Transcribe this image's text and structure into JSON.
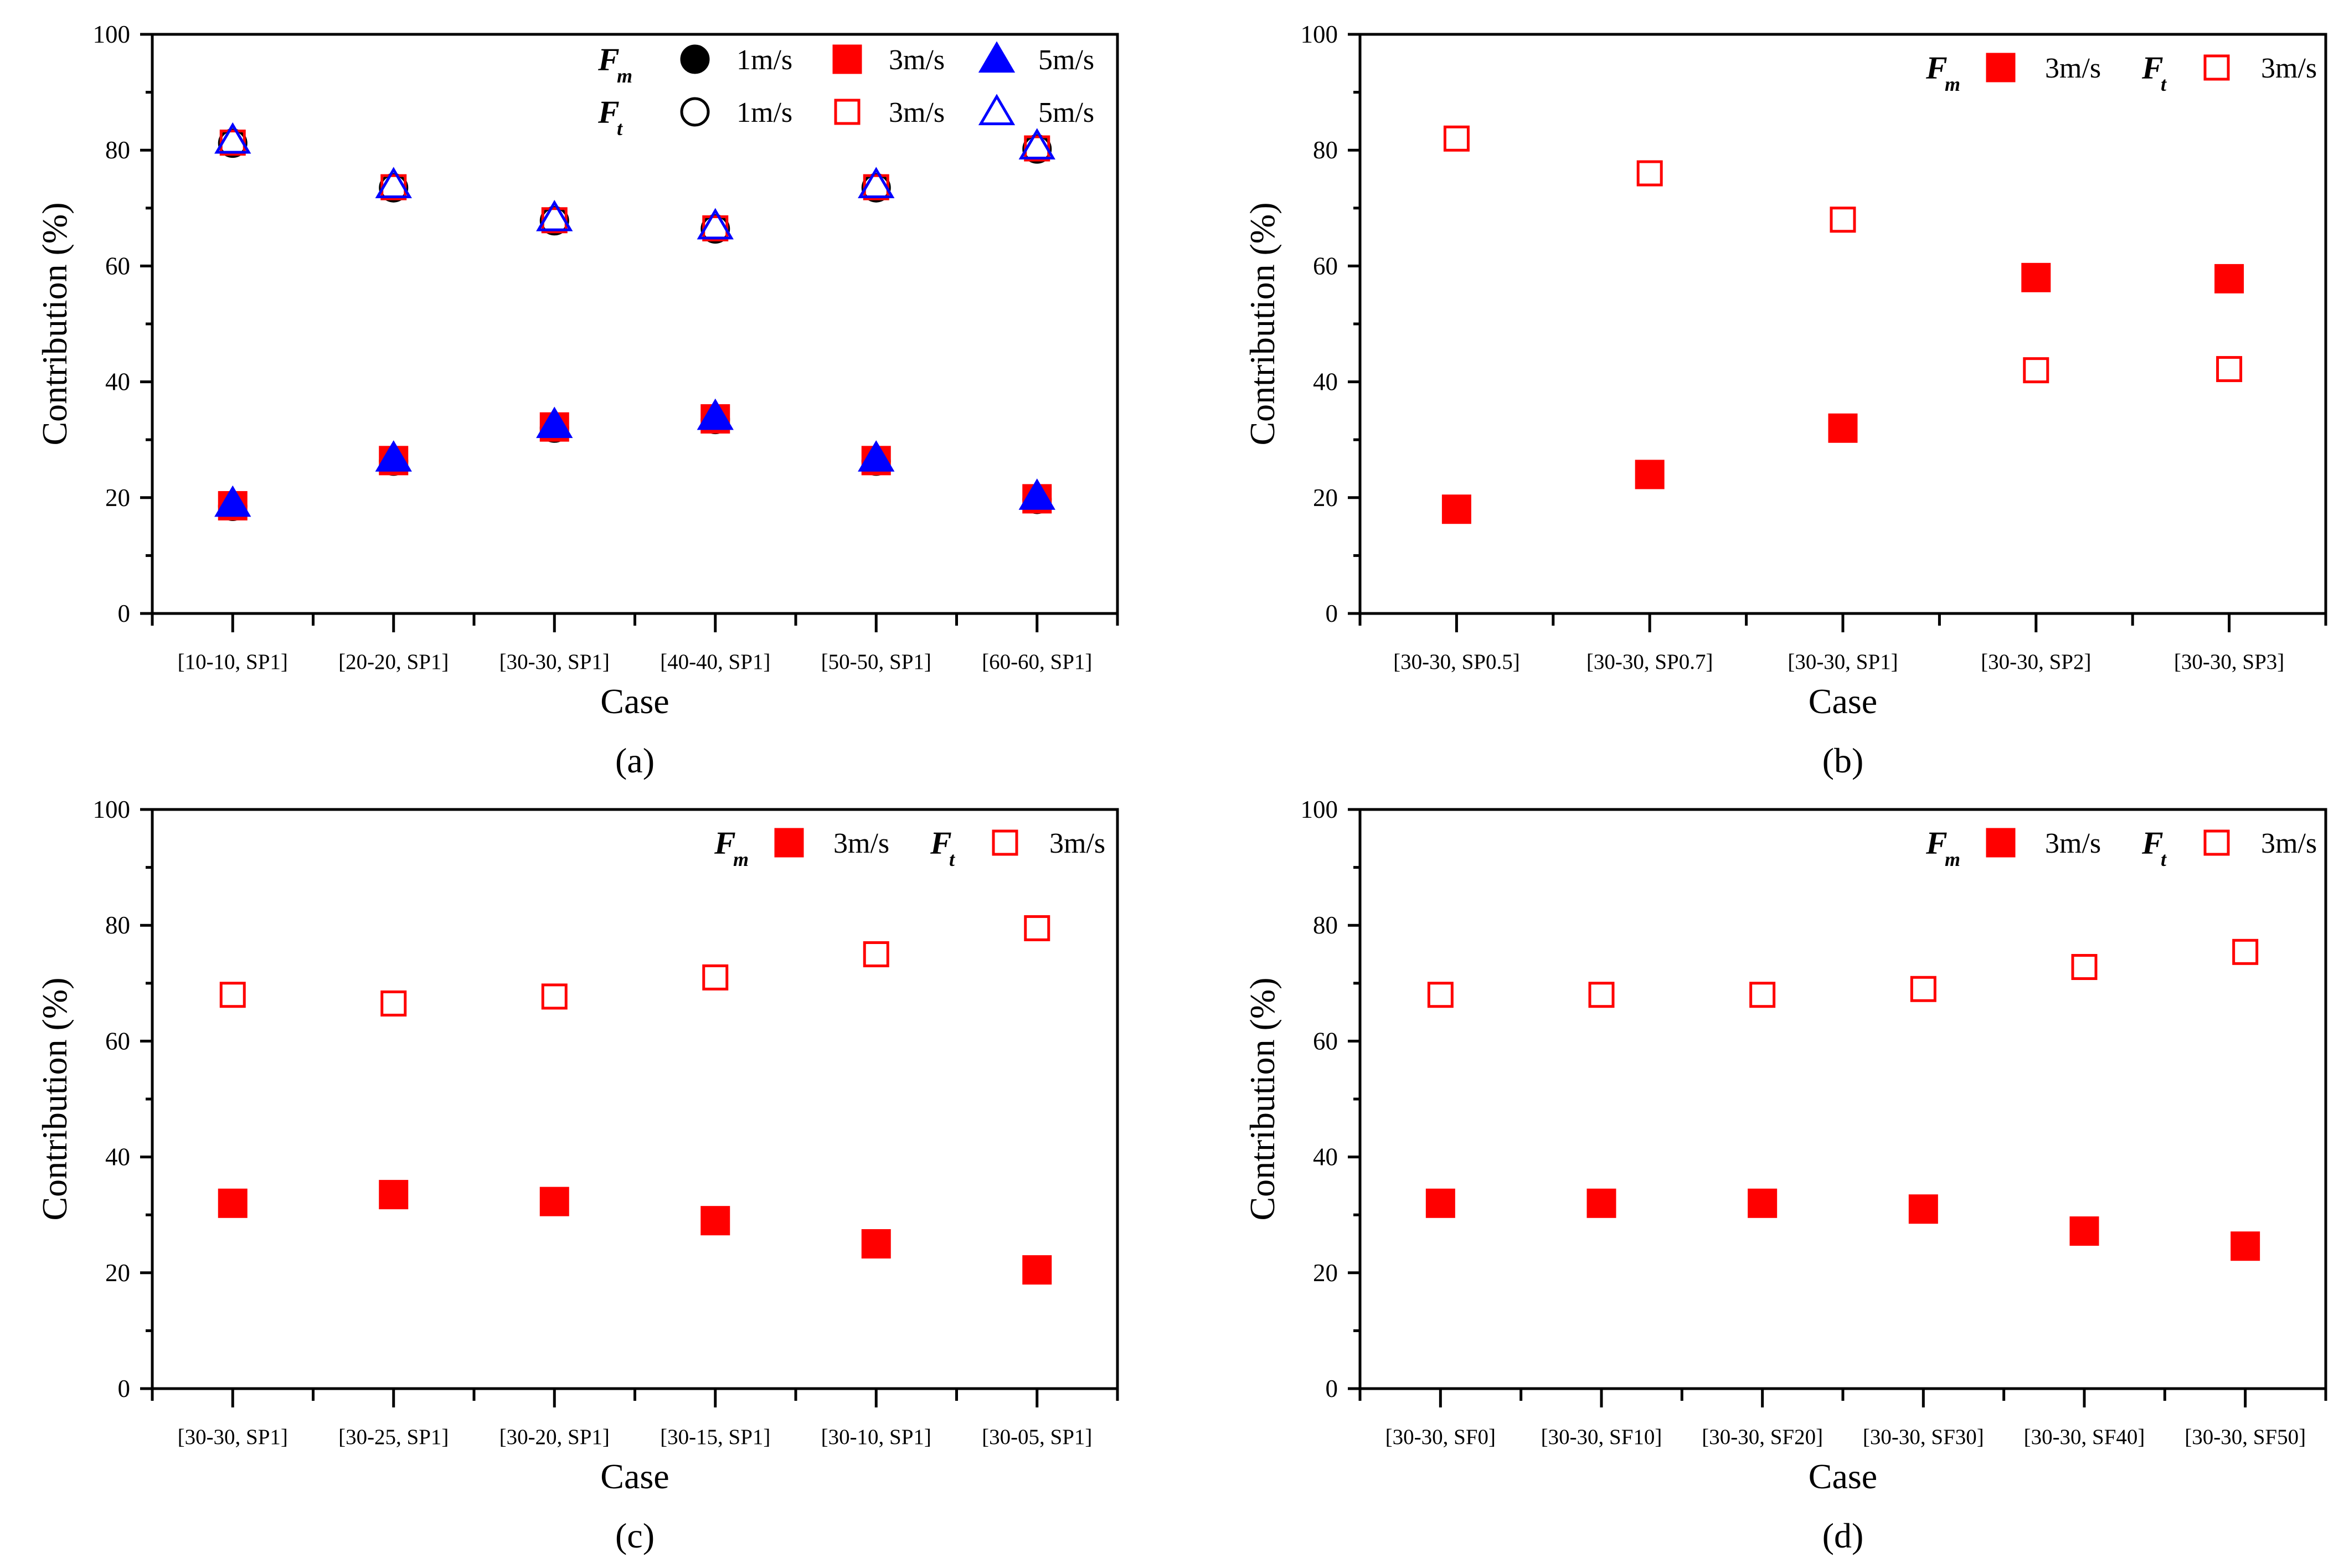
{
  "chart_data": [
    {
      "type": "scatter",
      "panel_label": "(a)",
      "xlabel": "Case",
      "ylabel": "Contribution (%)",
      "ylim": [
        0,
        100
      ],
      "yticks": [
        "0",
        "20",
        "40",
        "60",
        "80",
        "100"
      ],
      "categories": [
        "[10-10, SP1]",
        "[20-20, SP1]",
        "[30-30, SP1]",
        "[40-40, SP1]",
        "[50-50, SP1]",
        "[60-60, SP1]"
      ],
      "legend_position": "top-right",
      "legend": [
        {
          "sym": "F",
          "sub": "m",
          "items": [
            {
              "marker": "circle-filled",
              "color": "#000000",
              "label": "1m/s"
            },
            {
              "marker": "square-filled",
              "color": "#ff0000",
              "label": "3m/s"
            },
            {
              "marker": "triangle-filled",
              "color": "#0000ff",
              "label": "5m/s"
            }
          ]
        },
        {
          "sym": "F",
          "sub": "t",
          "items": [
            {
              "marker": "circle-open",
              "color": "#000000",
              "label": "1m/s"
            },
            {
              "marker": "square-open",
              "color": "#ff0000",
              "label": "3m/s"
            },
            {
              "marker": "triangle-open",
              "color": "#0000ff",
              "label": "5m/s"
            }
          ]
        }
      ],
      "series": [
        {
          "name": "F_m 1m/s",
          "marker": "circle-filled",
          "color": "#000000",
          "values": [
            18.5,
            26.3,
            32.0,
            33.5,
            26.3,
            19.7
          ]
        },
        {
          "name": "F_m 3m/s",
          "marker": "square-filled",
          "color": "#ff0000",
          "values": [
            18.6,
            26.4,
            32.2,
            33.6,
            26.4,
            19.8
          ]
        },
        {
          "name": "F_m 5m/s",
          "marker": "triangle-filled",
          "color": "#0000ff",
          "values": [
            19.0,
            26.8,
            32.6,
            34.0,
            26.8,
            20.2
          ]
        },
        {
          "name": "F_t 1m/s",
          "marker": "circle-open",
          "color": "#000000",
          "values": [
            81.2,
            73.5,
            67.8,
            66.4,
            73.5,
            80.2
          ]
        },
        {
          "name": "F_t 3m/s",
          "marker": "square-open",
          "color": "#ff0000",
          "values": [
            81.3,
            73.6,
            67.9,
            66.5,
            73.6,
            80.3
          ]
        },
        {
          "name": "F_t 5m/s",
          "marker": "triangle-open",
          "color": "#0000ff",
          "values": [
            81.7,
            74.0,
            68.3,
            66.9,
            74.0,
            80.7
          ]
        }
      ]
    },
    {
      "type": "scatter",
      "panel_label": "(b)",
      "xlabel": "Case",
      "ylabel": "Contribution (%)",
      "ylim": [
        0,
        100
      ],
      "yticks": [
        "0",
        "20",
        "40",
        "60",
        "80",
        "100"
      ],
      "categories": [
        "[30-30, SP0.5]",
        "[30-30, SP0.7]",
        "[30-30, SP1]",
        "[30-30, SP2]",
        "[30-30, SP3]"
      ],
      "legend_position": "top-right",
      "legend": [
        {
          "sym": "F",
          "sub": "m",
          "items": [
            {
              "marker": "square-filled",
              "color": "#ff0000",
              "label": "3m/s"
            }
          ]
        },
        {
          "sym": "F",
          "sub": "t",
          "items": [
            {
              "marker": "square-open",
              "color": "#ff0000",
              "label": "3m/s"
            }
          ]
        }
      ],
      "series": [
        {
          "name": "F_m 3m/s",
          "marker": "square-filled",
          "color": "#ff0000",
          "values": [
            18.0,
            24.0,
            32.0,
            58.0,
            57.8
          ]
        },
        {
          "name": "F_t 3m/s",
          "marker": "square-open",
          "color": "#ff0000",
          "values": [
            82.0,
            76.0,
            68.0,
            42.0,
            42.2
          ]
        }
      ]
    },
    {
      "type": "scatter",
      "panel_label": "(c)",
      "xlabel": "Case",
      "ylabel": "Contribution (%)",
      "ylim": [
        0,
        100
      ],
      "yticks": [
        "0",
        "20",
        "40",
        "60",
        "80",
        "100"
      ],
      "categories": [
        "[30-30, SP1]",
        "[30-25, SP1]",
        "[30-20, SP1]",
        "[30-15, SP1]",
        "[30-10, SP1]",
        "[30-05, SP1]"
      ],
      "legend_position": "top-right",
      "legend": [
        {
          "sym": "F",
          "sub": "m",
          "items": [
            {
              "marker": "square-filled",
              "color": "#ff0000",
              "label": "3m/s"
            }
          ]
        },
        {
          "sym": "F",
          "sub": "t",
          "items": [
            {
              "marker": "square-open",
              "color": "#ff0000",
              "label": "3m/s"
            }
          ]
        }
      ],
      "series": [
        {
          "name": "F_m 3m/s",
          "marker": "square-filled",
          "color": "#ff0000",
          "values": [
            32.0,
            33.5,
            32.3,
            29.0,
            25.0,
            20.5
          ]
        },
        {
          "name": "F_t 3m/s",
          "marker": "square-open",
          "color": "#ff0000",
          "values": [
            68.0,
            66.5,
            67.7,
            71.0,
            75.0,
            79.5
          ]
        }
      ]
    },
    {
      "type": "scatter",
      "panel_label": "(d)",
      "xlabel": "Case",
      "ylabel": "Contribution (%)",
      "ylim": [
        0,
        100
      ],
      "yticks": [
        "0",
        "20",
        "40",
        "60",
        "80",
        "100"
      ],
      "categories": [
        "[30-30, SF0]",
        "[30-30, SF10]",
        "[30-30, SF20]",
        "[30-30, SF30]",
        "[30-30, SF40]",
        "[30-30, SF50]"
      ],
      "legend_position": "top-right",
      "legend": [
        {
          "sym": "F",
          "sub": "m",
          "items": [
            {
              "marker": "square-filled",
              "color": "#ff0000",
              "label": "3m/s"
            }
          ]
        },
        {
          "sym": "F",
          "sub": "t",
          "items": [
            {
              "marker": "square-open",
              "color": "#ff0000",
              "label": "3m/s"
            }
          ]
        }
      ],
      "series": [
        {
          "name": "F_m 3m/s",
          "marker": "square-filled",
          "color": "#ff0000",
          "values": [
            32.0,
            32.0,
            32.0,
            31.0,
            27.2,
            24.6
          ]
        },
        {
          "name": "F_t 3m/s",
          "marker": "square-open",
          "color": "#ff0000",
          "values": [
            68.0,
            68.0,
            68.0,
            69.0,
            72.8,
            75.4
          ]
        }
      ]
    }
  ]
}
